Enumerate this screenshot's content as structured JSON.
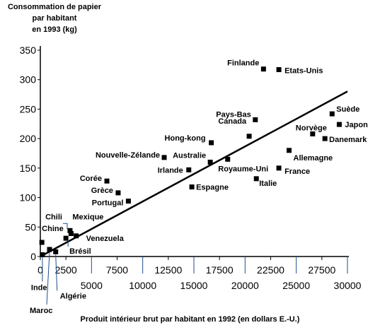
{
  "chart_data": {
    "type": "scatter",
    "title": "",
    "ylabel": "Consommation de papier\npar habitant\nen 1993 (kg)",
    "xlabel": "Produit intérieur brut par habitant en 1992 (en dollars E.-U.)",
    "ylim": [
      0,
      350
    ],
    "xlim": [
      0,
      30000
    ],
    "yticks": [
      "0",
      "50",
      "100",
      "150",
      "200",
      "250",
      "300",
      "350"
    ],
    "xticks_top": [
      "0",
      "2500",
      "7500",
      "12500",
      "17500",
      "22500",
      "27500"
    ],
    "xticks_bottom": [
      "5000",
      "10000",
      "15000",
      "20000",
      "25000",
      "30000"
    ],
    "points": [
      {
        "name": "Finlande",
        "x": 21800,
        "y": 318
      },
      {
        "name": "Etats-Unis",
        "x": 23300,
        "y": 317
      },
      {
        "name": "Suède",
        "x": 28500,
        "y": 242
      },
      {
        "name": "Japon",
        "x": 29200,
        "y": 224
      },
      {
        "name": "Pays-Bas",
        "x": 21000,
        "y": 232
      },
      {
        "name": "Norvège",
        "x": 26600,
        "y": 208
      },
      {
        "name": "Danemark",
        "x": 27800,
        "y": 200
      },
      {
        "name": "Canada",
        "x": 20400,
        "y": 204
      },
      {
        "name": "Allemagne",
        "x": 24300,
        "y": 180
      },
      {
        "name": "Hong-kong",
        "x": 16700,
        "y": 193
      },
      {
        "name": "Nouvelle-Zélande",
        "x": 12100,
        "y": 168
      },
      {
        "name": "Australie",
        "x": 16600,
        "y": 160
      },
      {
        "name": "Royaume-Uni",
        "x": 18300,
        "y": 165
      },
      {
        "name": "Irlande",
        "x": 14500,
        "y": 147
      },
      {
        "name": "France",
        "x": 23300,
        "y": 150
      },
      {
        "name": "Espagne",
        "x": 14800,
        "y": 118
      },
      {
        "name": "Italie",
        "x": 21100,
        "y": 132
      },
      {
        "name": "Corée",
        "x": 6500,
        "y": 128
      },
      {
        "name": "Grèce",
        "x": 7600,
        "y": 108
      },
      {
        "name": "Portugal",
        "x": 8600,
        "y": 94
      },
      {
        "name": "Chili",
        "x": 2900,
        "y": 44
      },
      {
        "name": "Mexique",
        "x": 3000,
        "y": 39
      },
      {
        "name": "Chine",
        "x": 150,
        "y": 24
      },
      {
        "name": "Venezuela",
        "x": 3500,
        "y": 35
      },
      {
        "name": "Brésil",
        "x": 2500,
        "y": 31
      },
      {
        "name": "Inde",
        "x": 200,
        "y": 3
      },
      {
        "name": "Maroc",
        "x": 900,
        "y": 12
      },
      {
        "name": "Algérie",
        "x": 1500,
        "y": 8
      }
    ],
    "trend_line": {
      "x": [
        0,
        30000
      ],
      "y": [
        0,
        280
      ]
    },
    "grid": false,
    "legend": "none"
  }
}
